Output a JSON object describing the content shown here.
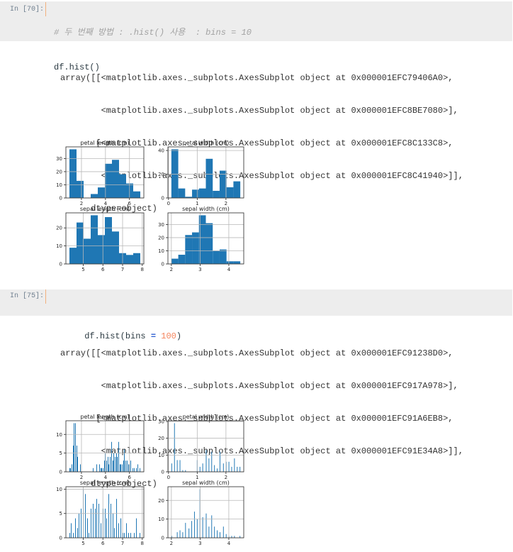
{
  "cells": [
    {
      "prompt": "In [70]:",
      "code": {
        "comment": "# 두 번째 방법 : .hist() 사용  : bins = 10",
        "line2": "df.hist()"
      },
      "output": {
        "lines": [
          "array([[<matplotlib.axes._subplots.AxesSubplot object at 0x000001EFC79406A0>,",
          "        <matplotlib.axes._subplots.AxesSubplot object at 0x000001EFC8BE7080>],",
          "       [<matplotlib.axes._subplots.AxesSubplot object at 0x000001EFC8C133C8>,",
          "        <matplotlib.axes._subplots.AxesSubplot object at 0x000001EFC8C41940>]],",
          "      dtype=object)"
        ]
      }
    },
    {
      "prompt": "In [75]:",
      "code": {
        "tokens": [
          "df.hist(bins ",
          "=",
          " ",
          "100",
          ")"
        ]
      },
      "output": {
        "lines": [
          "array([[<matplotlib.axes._subplots.AxesSubplot object at 0x000001EFC91238D0>,",
          "        <matplotlib.axes._subplots.AxesSubplot object at 0x000001EFC917A978>],",
          "       [<matplotlib.axes._subplots.AxesSubplot object at 0x000001EFC91A6EB8>,",
          "        <matplotlib.axes._subplots.AxesSubplot object at 0x000001EFC91E34A8>]],",
          "      dtype=object)"
        ]
      }
    }
  ],
  "colors": {
    "bar": "#1f77b4",
    "grid": "#b8b8b8",
    "spine": "#262626",
    "cell_bg": "#ededed",
    "focus_bar": "#f2b07c"
  },
  "chart_data": [
    {
      "type": "histogram",
      "bins": 10,
      "layout": "2x2 grid",
      "grid": true,
      "panels": [
        {
          "title": "petal length (cm)",
          "range": [
            1.0,
            6.9
          ],
          "bins": 10,
          "counts": [
            37,
            13,
            0,
            3,
            8,
            26,
            29,
            18,
            11,
            5
          ],
          "xlim": [
            0.705,
            7.195
          ],
          "ylim": [
            0,
            38.85
          ],
          "xticks": [
            2,
            4,
            6
          ],
          "yticks": [
            0,
            10,
            20,
            30
          ]
        },
        {
          "title": "petal width (cm)",
          "range": [
            0.1,
            2.5
          ],
          "bins": 10,
          "counts": [
            41,
            8,
            1,
            7,
            8,
            33,
            6,
            23,
            9,
            14
          ],
          "xlim": [
            -0.02,
            2.62
          ],
          "ylim": [
            0,
            43.05
          ],
          "xticks": [
            0,
            1,
            2
          ],
          "yticks": [
            0,
            20,
            40
          ]
        },
        {
          "title": "sepal length (cm)",
          "range": [
            4.3,
            7.9
          ],
          "bins": 10,
          "counts": [
            9,
            23,
            14,
            27,
            16,
            26,
            18,
            6,
            5,
            6
          ],
          "xlim": [
            4.12,
            8.08
          ],
          "ylim": [
            0,
            28.35
          ],
          "xticks": [
            5,
            6,
            7,
            8
          ],
          "yticks": [
            0,
            10,
            20
          ]
        },
        {
          "title": "sepal width (cm)",
          "range": [
            2.0,
            4.4
          ],
          "bins": 10,
          "counts": [
            4,
            7,
            22,
            24,
            37,
            31,
            10,
            11,
            2,
            2
          ],
          "xlim": [
            1.88,
            4.52
          ],
          "ylim": [
            0,
            38.85
          ],
          "xticks": [
            2,
            3,
            4
          ],
          "yticks": [
            0,
            10,
            20,
            30
          ]
        }
      ]
    },
    {
      "type": "histogram",
      "bins": 100,
      "layout": "2x2 grid",
      "grid": true,
      "panels": [
        {
          "title": "petal length (cm)",
          "range": [
            1.0,
            6.9
          ],
          "bins": 100,
          "values": [
            [
              1.0,
              1
            ],
            [
              1.1,
              1
            ],
            [
              1.2,
              2
            ],
            [
              1.3,
              7
            ],
            [
              1.4,
              13
            ],
            [
              1.5,
              13
            ],
            [
              1.6,
              7
            ],
            [
              1.7,
              4
            ],
            [
              1.9,
              2
            ],
            [
              3.0,
              1
            ],
            [
              3.3,
              2
            ],
            [
              3.5,
              2
            ],
            [
              3.6,
              1
            ],
            [
              3.7,
              1
            ],
            [
              3.8,
              1
            ],
            [
              3.9,
              3
            ],
            [
              4.0,
              5
            ],
            [
              4.1,
              3
            ],
            [
              4.2,
              4
            ],
            [
              4.3,
              2
            ],
            [
              4.4,
              4
            ],
            [
              4.5,
              8
            ],
            [
              4.6,
              3
            ],
            [
              4.7,
              5
            ],
            [
              4.8,
              4
            ],
            [
              4.9,
              5
            ],
            [
              5.0,
              4
            ],
            [
              5.1,
              8
            ],
            [
              5.2,
              2
            ],
            [
              5.3,
              2
            ],
            [
              5.4,
              2
            ],
            [
              5.5,
              3
            ],
            [
              5.6,
              6
            ],
            [
              5.7,
              3
            ],
            [
              5.8,
              3
            ],
            [
              5.9,
              2
            ],
            [
              6.0,
              2
            ],
            [
              6.1,
              3
            ],
            [
              6.3,
              1
            ],
            [
              6.4,
              1
            ],
            [
              6.6,
              1
            ],
            [
              6.7,
              2
            ],
            [
              6.9,
              1
            ]
          ],
          "xlim": [
            0.705,
            7.195
          ],
          "ylim": [
            0,
            13.65
          ],
          "xticks": [
            2,
            4,
            6
          ],
          "yticks": [
            0,
            5,
            10
          ]
        },
        {
          "title": "petal width (cm)",
          "range": [
            0.1,
            2.5
          ],
          "bins": 100,
          "values": [
            [
              0.1,
              5
            ],
            [
              0.2,
              29
            ],
            [
              0.3,
              7
            ],
            [
              0.4,
              7
            ],
            [
              0.5,
              1
            ],
            [
              0.6,
              1
            ],
            [
              1.0,
              7
            ],
            [
              1.1,
              3
            ],
            [
              1.2,
              5
            ],
            [
              1.3,
              13
            ],
            [
              1.4,
              8
            ],
            [
              1.5,
              12
            ],
            [
              1.6,
              4
            ],
            [
              1.7,
              2
            ],
            [
              1.8,
              12
            ],
            [
              1.9,
              5
            ],
            [
              2.0,
              6
            ],
            [
              2.1,
              6
            ],
            [
              2.2,
              3
            ],
            [
              2.3,
              8
            ],
            [
              2.4,
              3
            ],
            [
              2.5,
              3
            ]
          ],
          "xlim": [
            -0.02,
            2.62
          ],
          "ylim": [
            0,
            30.45
          ],
          "xticks": [
            0,
            1,
            2
          ],
          "yticks": [
            0,
            10,
            20,
            30
          ]
        },
        {
          "title": "sepal length (cm)",
          "range": [
            4.3,
            7.9
          ],
          "bins": 100,
          "values": [
            [
              4.3,
              1
            ],
            [
              4.4,
              3
            ],
            [
              4.5,
              1
            ],
            [
              4.6,
              4
            ],
            [
              4.7,
              2
            ],
            [
              4.8,
              5
            ],
            [
              4.9,
              6
            ],
            [
              5.0,
              10
            ],
            [
              5.1,
              9
            ],
            [
              5.2,
              4
            ],
            [
              5.3,
              1
            ],
            [
              5.4,
              6
            ],
            [
              5.5,
              7
            ],
            [
              5.6,
              6
            ],
            [
              5.7,
              8
            ],
            [
              5.8,
              7
            ],
            [
              5.9,
              3
            ],
            [
              6.0,
              6
            ],
            [
              6.1,
              6
            ],
            [
              6.2,
              4
            ],
            [
              6.3,
              9
            ],
            [
              6.4,
              7
            ],
            [
              6.5,
              5
            ],
            [
              6.6,
              2
            ],
            [
              6.7,
              8
            ],
            [
              6.8,
              3
            ],
            [
              6.9,
              4
            ],
            [
              7.0,
              1
            ],
            [
              7.1,
              1
            ],
            [
              7.2,
              3
            ],
            [
              7.3,
              1
            ],
            [
              7.4,
              1
            ],
            [
              7.6,
              1
            ],
            [
              7.7,
              4
            ],
            [
              7.9,
              1
            ]
          ],
          "xlim": [
            4.12,
            8.08
          ],
          "ylim": [
            0,
            10.5
          ],
          "xticks": [
            5,
            6,
            7,
            8
          ],
          "yticks": [
            0,
            5,
            10
          ]
        },
        {
          "title": "sepal width (cm)",
          "range": [
            2.0,
            4.4
          ],
          "bins": 100,
          "values": [
            [
              2.0,
              1
            ],
            [
              2.2,
              3
            ],
            [
              2.3,
              4
            ],
            [
              2.4,
              3
            ],
            [
              2.5,
              8
            ],
            [
              2.6,
              5
            ],
            [
              2.7,
              9
            ],
            [
              2.8,
              14
            ],
            [
              2.9,
              10
            ],
            [
              3.0,
              26
            ],
            [
              3.1,
              11
            ],
            [
              3.2,
              13
            ],
            [
              3.3,
              6
            ],
            [
              3.4,
              12
            ],
            [
              3.5,
              6
            ],
            [
              3.6,
              4
            ],
            [
              3.7,
              3
            ],
            [
              3.8,
              6
            ],
            [
              3.9,
              2
            ],
            [
              4.0,
              1
            ],
            [
              4.1,
              1
            ],
            [
              4.2,
              1
            ],
            [
              4.4,
              1
            ]
          ],
          "xlim": [
            1.88,
            4.52
          ],
          "ylim": [
            0,
            27.3
          ],
          "xticks": [
            2,
            3,
            4
          ],
          "yticks": [
            0,
            10,
            20
          ]
        }
      ]
    }
  ]
}
